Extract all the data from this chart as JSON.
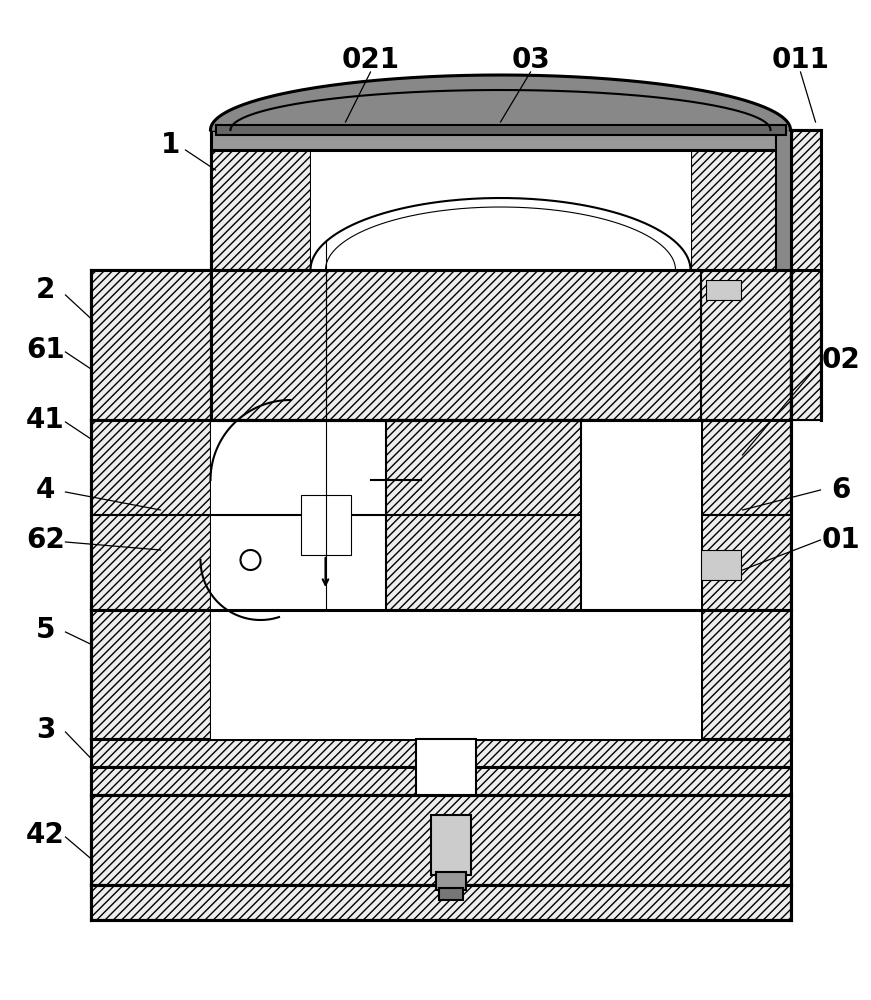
{
  "bg_color": "#ffffff",
  "lw": 1.5,
  "lw_thick": 2.2,
  "lw_thin": 0.8,
  "hatch_color": "#000000",
  "figsize": [
    8.71,
    10.0
  ],
  "dpi": 100,
  "label_fs": 20
}
